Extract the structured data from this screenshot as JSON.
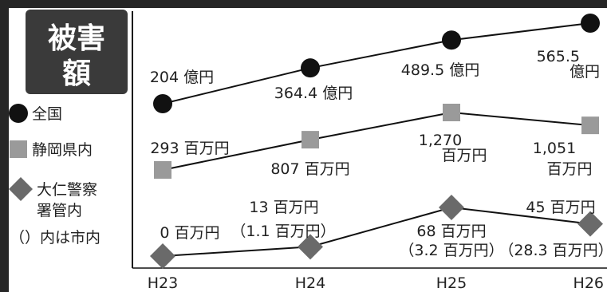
{
  "chart_data": {
    "type": "line",
    "title": "被害額",
    "categories": [
      "H23",
      "H24",
      "H25",
      "H26"
    ],
    "legend": {
      "note": "（）内は市内"
    },
    "series": [
      {
        "name": "全国",
        "marker": "circle",
        "unit": "億円",
        "values": [
          204,
          364.4,
          489.5,
          565.5
        ],
        "labels": [
          "204 億円",
          "364.4 億円",
          "489.5 億円",
          "565.5 億円"
        ]
      },
      {
        "name": "静岡県内",
        "marker": "square",
        "unit": "百万円",
        "values": [
          293,
          807,
          1270,
          1051
        ],
        "labels": [
          "293 百万円",
          "807 百万円",
          "1,270 百万円",
          "1,051 百万円"
        ]
      },
      {
        "name": "大仁警察署管内",
        "marker": "diamond",
        "unit": "百万円",
        "values": [
          0,
          13,
          68,
          45
        ],
        "city_values": [
          null,
          1.1,
          3.2,
          28.3
        ],
        "labels": [
          "0 百万円",
          "13 百万円",
          "68 百万円",
          "45 百万円"
        ],
        "city_labels": [
          "",
          "（1.1 百万円）",
          "（3.2 百万円）",
          "（28.3 百万円）"
        ]
      }
    ],
    "colors": {
      "background_frame": "#262626",
      "title_box": "#3a3a3a",
      "title_text": "#ffffff",
      "national": "#111111",
      "prefecture": "#9a9a9a",
      "police": "#6a6a6a",
      "line": "#111111"
    }
  }
}
